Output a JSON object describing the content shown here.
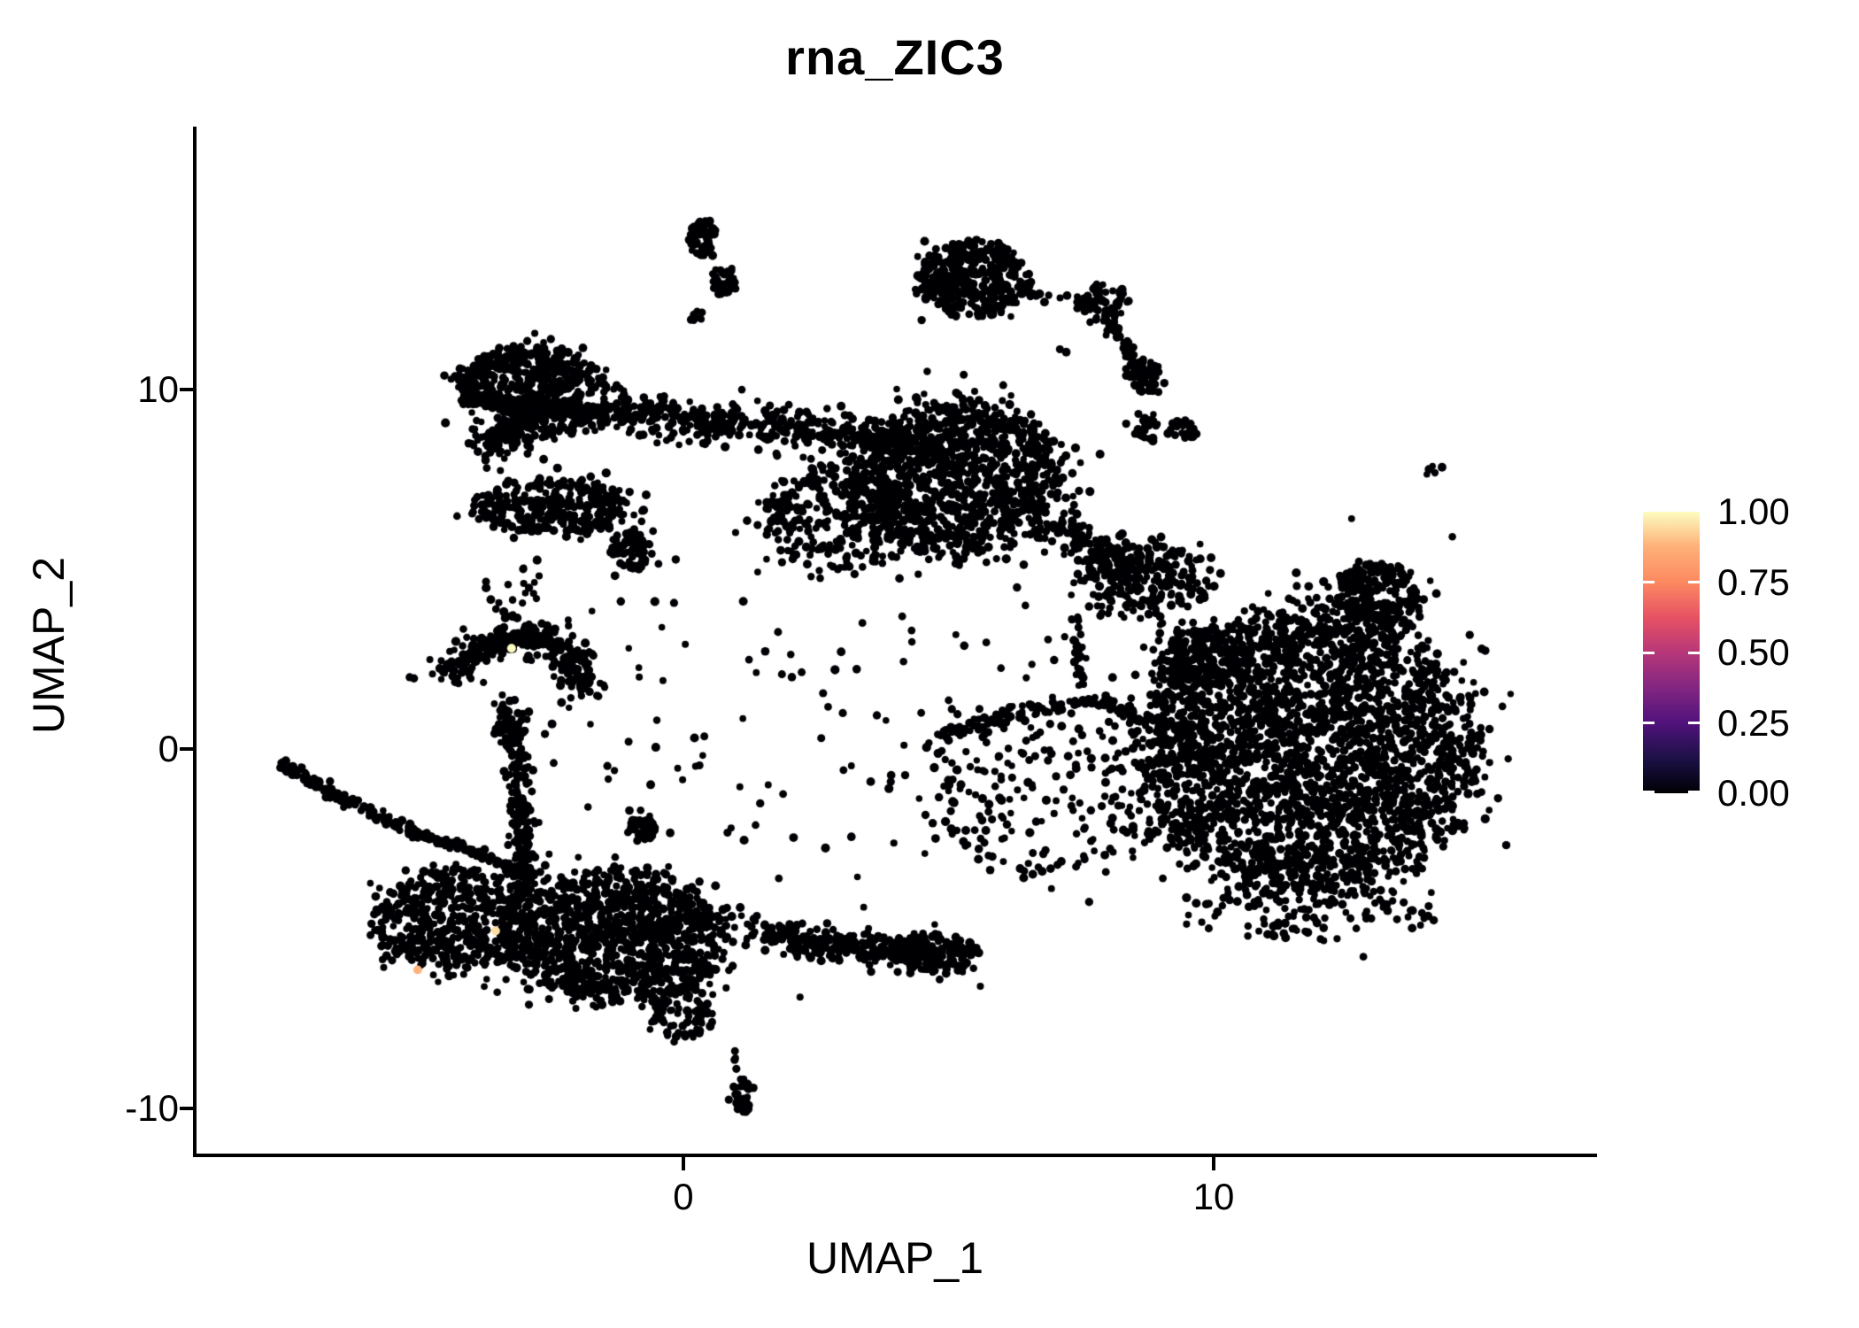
{
  "chart_data": {
    "type": "scatter",
    "title": "rna_ZIC3",
    "xlabel": "UMAP_1",
    "ylabel": "UMAP_2",
    "x_range": [
      -9.18,
      17.16
    ],
    "y_range": [
      -11.25,
      17.3
    ],
    "x_ticks": [
      {
        "value": 0,
        "label": "0"
      },
      {
        "value": 10,
        "label": "10"
      }
    ],
    "y_ticks": [
      {
        "value": 10,
        "label": "10"
      },
      {
        "value": 0,
        "label": "0"
      },
      {
        "value": -10,
        "label": "-10"
      }
    ],
    "grid": false,
    "point_color": "#000004",
    "point_radius": 4.5,
    "legend": {
      "position": "right",
      "labels": [
        {
          "value": 1.0,
          "label": "1.00"
        },
        {
          "value": 0.75,
          "label": "0.75"
        },
        {
          "value": 0.5,
          "label": "0.50"
        },
        {
          "value": 0.25,
          "label": "0.25"
        },
        {
          "value": 0.0,
          "label": "0.00"
        }
      ],
      "tick_values": [
        0.0,
        0.25,
        0.5,
        0.75
      ],
      "colormap": "magma",
      "gradient_stops": [
        {
          "at": 0.0,
          "color": "#000004"
        },
        {
          "at": 0.125,
          "color": "#1d1147"
        },
        {
          "at": 0.25,
          "color": "#51127c"
        },
        {
          "at": 0.375,
          "color": "#822681"
        },
        {
          "at": 0.5,
          "color": "#b73779"
        },
        {
          "at": 0.625,
          "color": "#e75263"
        },
        {
          "at": 0.75,
          "color": "#fc8961"
        },
        {
          "at": 0.875,
          "color": "#feb078"
        },
        {
          "at": 1.0,
          "color": "#fcfdbf"
        }
      ]
    },
    "clusters": [
      {
        "name": "top-small-blob-a",
        "x": 0.35,
        "y": 14.23,
        "rx": 0.26,
        "ry": 0.56,
        "n": 55
      },
      {
        "name": "top-small-blob-b",
        "x": 0.77,
        "y": 13.0,
        "rx": 0.22,
        "ry": 0.46,
        "n": 40
      },
      {
        "name": "top-small-blob-c",
        "x": 0.22,
        "y": 12.09,
        "rx": 0.15,
        "ry": 0.22,
        "n": 8
      },
      {
        "name": "top-right-blob",
        "x": 5.48,
        "y": 13.07,
        "rx": 1.02,
        "ry": 1.05,
        "n": 320
      },
      {
        "name": "top-right-blob-tip",
        "x": 4.8,
        "y": 13.0,
        "rx": 0.45,
        "ry": 0.5,
        "n": 60
      },
      {
        "name": "chain-cluster-1",
        "x": 7.93,
        "y": 12.41,
        "rx": 0.5,
        "ry": 0.52,
        "n": 70
      },
      {
        "name": "chain-cluster-2",
        "x": 8.7,
        "y": 10.39,
        "rx": 0.3,
        "ry": 0.52,
        "n": 55
      },
      {
        "name": "chain-cluster-3",
        "x": 8.75,
        "y": 8.97,
        "rx": 0.22,
        "ry": 0.38,
        "n": 25
      },
      {
        "name": "chain-cluster-4",
        "x": 9.42,
        "y": 8.85,
        "rx": 0.26,
        "ry": 0.26,
        "n": 30
      },
      {
        "name": "left-ten-cluster",
        "x": -2.95,
        "y": 10.25,
        "rx": 1.28,
        "ry": 0.92,
        "n": 430
      },
      {
        "name": "left-ten-appendage",
        "x": -3.92,
        "y": 9.71,
        "rx": 0.3,
        "ry": 0.26,
        "n": 30
      },
      {
        "name": "left-stripe-cluster",
        "x": -2.45,
        "y": 6.73,
        "rx": 1.48,
        "ry": 0.78,
        "n": 330
      },
      {
        "name": "small-mid-cluster",
        "x": -1.0,
        "y": 5.53,
        "rx": 0.4,
        "ry": 0.56,
        "n": 70
      },
      {
        "name": "wing-main-mass",
        "x": 5.14,
        "y": 7.54,
        "rx": 1.95,
        "ry": 2.15,
        "n": 1050
      },
      {
        "name": "wing-under-scatter",
        "x": 2.97,
        "y": 6.44,
        "rx": 1.6,
        "ry": 1.5,
        "n": 300,
        "sparse": true
      },
      {
        "name": "wing-right-tail",
        "x": 8.65,
        "y": 4.72,
        "rx": 1.25,
        "ry": 1.1,
        "n": 230
      },
      {
        "name": "hook-side-cluster",
        "x": -0.78,
        "y": -2.16,
        "rx": 0.27,
        "ry": 0.4,
        "n": 40
      },
      {
        "name": "bottom-main-mass",
        "x": -1.2,
        "y": -5.23,
        "rx": 1.95,
        "ry": 1.8,
        "n": 1050
      },
      {
        "name": "bottom-taper",
        "x": -0.03,
        "y": -7.3,
        "rx": 0.55,
        "ry": 0.8,
        "n": 90
      },
      {
        "name": "bottom-left-mass",
        "x": -4.21,
        "y": -4.74,
        "rx": 1.6,
        "ry": 1.45,
        "n": 520
      },
      {
        "name": "bottom-band-end-blob",
        "x": 4.77,
        "y": -5.68,
        "rx": 0.78,
        "ry": 0.58,
        "n": 130
      },
      {
        "name": "detached-bottom-blob",
        "x": 1.14,
        "y": -9.66,
        "rx": 0.22,
        "ry": 0.45,
        "n": 32
      },
      {
        "name": "right-giant-blob",
        "x": 11.74,
        "y": -0.07,
        "rx": 3.12,
        "ry": 3.97,
        "n": 2700
      },
      {
        "name": "right-top-bump",
        "x": 13.07,
        "y": 4.23,
        "rx": 0.82,
        "ry": 0.97,
        "n": 240
      },
      {
        "name": "right-left-shelf",
        "x": 9.82,
        "y": 2.51,
        "rx": 0.92,
        "ry": 0.87,
        "n": 190
      },
      {
        "name": "pre-blob-scatter",
        "x": 6.81,
        "y": -1.3,
        "rx": 2.3,
        "ry": 2.3,
        "n": 190,
        "sparse": true
      },
      {
        "name": "right-bottom-fringe",
        "x": 11.74,
        "y": -4.5,
        "rx": 2.5,
        "ry": 0.8,
        "n": 90,
        "sparse": true
      },
      {
        "name": "central-noise-field",
        "x": 2.5,
        "y": 1.5,
        "rx": 5.6,
        "ry": 4.6,
        "n": 130,
        "sparse": true
      },
      {
        "name": "stripe-gap-dots",
        "x": -3.2,
        "y": 4.6,
        "rx": 0.55,
        "ry": 1.1,
        "n": 22,
        "sparse": true
      },
      {
        "name": "far-right-tiny-pair",
        "x": 14.18,
        "y": 7.75,
        "rx": 0.18,
        "ry": 0.14,
        "n": 5
      }
    ],
    "paths": [
      {
        "name": "topright-dot-chain",
        "pts": [
          [
            6.4,
            12.72
          ],
          [
            7.4,
            12.55
          ]
        ],
        "w": 0.12,
        "n": 9
      },
      {
        "name": "descending-chain",
        "pts": [
          [
            8.06,
            11.84
          ],
          [
            8.4,
            11.11
          ],
          [
            8.7,
            10.25
          ]
        ],
        "w": 0.16,
        "n": 45
      },
      {
        "name": "ten-cluster-underline",
        "pts": [
          [
            -3.59,
            9.42
          ],
          [
            -1.54,
            9.42
          ]
        ],
        "w": 0.14,
        "n": 45
      },
      {
        "name": "ten-cluster-tail",
        "pts": [
          [
            -1.75,
            10.1
          ],
          [
            -1.2,
            10.06
          ]
        ],
        "w": 0.1,
        "n": 6
      },
      {
        "name": "wing-top-band",
        "pts": [
          [
            -3.75,
            8.35
          ],
          [
            -2.9,
            9.15
          ],
          [
            -1.2,
            9.32
          ],
          [
            0.5,
            9.05
          ],
          [
            2.5,
            8.95
          ],
          [
            4.3,
            8.55
          ]
        ],
        "w": 0.62,
        "n": 680
      },
      {
        "name": "wing-to-tail-bridge",
        "pts": [
          [
            6.9,
            6.3
          ],
          [
            7.8,
            5.5
          ],
          [
            8.6,
            4.9
          ]
        ],
        "w": 0.5,
        "n": 140
      },
      {
        "name": "wing-dribble",
        "pts": [
          [
            7.4,
            3.61
          ],
          [
            7.51,
            1.52
          ]
        ],
        "w": 0.12,
        "n": 26
      },
      {
        "name": "hook-arc",
        "pts": [
          [
            -4.46,
            2.01
          ],
          [
            -3.79,
            2.87
          ],
          [
            -2.87,
            3.24
          ],
          [
            -2.12,
            2.51
          ],
          [
            -1.87,
            1.52
          ]
        ],
        "w": 0.5,
        "n": 330
      },
      {
        "name": "hook-arm",
        "pts": [
          [
            -3.34,
            1.4
          ],
          [
            -3.21,
            0.17
          ]
        ],
        "w": 0.3,
        "n": 60
      },
      {
        "name": "hook-stripe",
        "pts": [
          [
            -3.12,
            0.05
          ],
          [
            -3.01,
            -3.88
          ]
        ],
        "w": 0.26,
        "n": 150
      },
      {
        "name": "left-long-chain",
        "pts": [
          [
            -7.6,
            -0.37
          ],
          [
            -6.38,
            -1.43
          ],
          [
            -5.21,
            -2.24
          ],
          [
            -4.04,
            -2.83
          ],
          [
            -2.87,
            -3.46
          ]
        ],
        "w": 0.18,
        "n": 230
      },
      {
        "name": "bottom-right-band",
        "pts": [
          [
            1.14,
            -5.18
          ],
          [
            2.97,
            -5.43
          ],
          [
            4.81,
            -5.72
          ]
        ],
        "w": 0.5,
        "n": 270
      },
      {
        "name": "lower-arc",
        "pts": [
          [
            4.31,
            0.05
          ],
          [
            6.14,
            1.01
          ],
          [
            7.98,
            1.3
          ],
          [
            9.12,
            0.66
          ]
        ],
        "w": 0.22,
        "n": 130
      },
      {
        "name": "detached-blob-trail",
        "pts": [
          [
            0.93,
            -8.18
          ],
          [
            1.1,
            -9.21
          ]
        ],
        "w": 0.1,
        "n": 6
      }
    ],
    "singles": [
      [
        8.35,
        9.04
      ],
      [
        7.1,
        11.11
      ],
      [
        7.22,
        11.03
      ],
      [
        -3.5,
        9.2
      ],
      [
        -3.38,
        8.9
      ],
      [
        -3.32,
        8.23
      ],
      [
        -3.45,
        7.74
      ],
      [
        -3.3,
        7.45
      ],
      [
        -0.28,
        -3.27
      ],
      [
        15.08,
        -0.07
      ],
      [
        15.2,
        0.55
      ],
      [
        15.05,
        -1.2
      ],
      [
        14.9,
        1.85
      ],
      [
        -6.9,
        -0.9
      ],
      [
        0.3,
        -7.9
      ],
      [
        -0.6,
        -7.6
      ],
      [
        2.2,
        -6.9
      ],
      [
        5.6,
        -6.6
      ],
      [
        3.4,
        -4.4
      ],
      [
        1.8,
        -3.6
      ],
      [
        0.9,
        -2.2
      ],
      [
        1.6,
        -1.0
      ],
      [
        2.6,
        0.3
      ],
      [
        -0.5,
        0.8
      ],
      [
        -1.3,
        -0.6
      ],
      [
        13.9,
        -4.9
      ],
      [
        10.3,
        -4.2
      ],
      [
        14.5,
        5.9
      ],
      [
        12.6,
        6.4
      ]
    ],
    "highlights": [
      {
        "x": -3.24,
        "y": 2.8,
        "value": 1.0
      },
      {
        "x": -3.54,
        "y": -5.06,
        "value": 0.95
      },
      {
        "x": -5.01,
        "y": -6.14,
        "value": 0.88
      }
    ]
  }
}
